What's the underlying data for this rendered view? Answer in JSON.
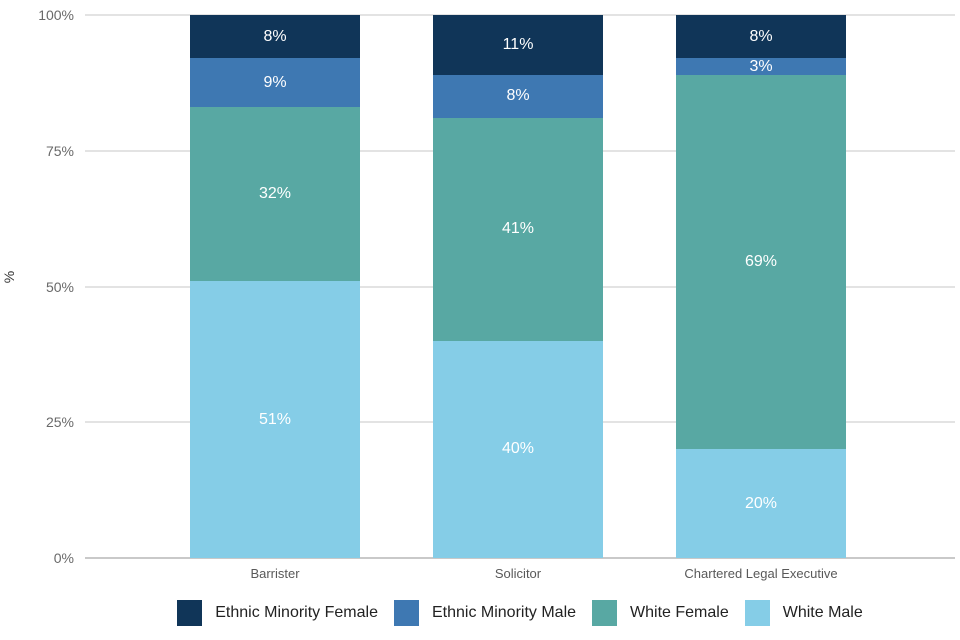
{
  "chart_data": {
    "type": "bar",
    "variant": "stacked-percent-column",
    "title": "",
    "categories": [
      "Barrister",
      "Solicitor",
      "Chartered Legal Executive"
    ],
    "series": [
      {
        "name": "Ethnic Minority Female",
        "color": "#103558",
        "values": [
          8,
          11,
          8
        ]
      },
      {
        "name": "Ethnic Minority Male",
        "color": "#3e78b2",
        "values": [
          9,
          8,
          3
        ]
      },
      {
        "name": "White Female",
        "color": "#58a8a3",
        "values": [
          32,
          41,
          69
        ]
      },
      {
        "name": "White Male",
        "color": "#85cde7",
        "values": [
          51,
          40,
          20
        ]
      }
    ],
    "xlabel": "",
    "ylabel": "%",
    "ylim": [
      0,
      100
    ],
    "yticks": [
      {
        "value": 0,
        "label": "0%"
      },
      {
        "value": 25,
        "label": "25%"
      },
      {
        "value": 50,
        "label": "50%"
      },
      {
        "value": 75,
        "label": "75%"
      },
      {
        "value": 100,
        "label": "100%"
      }
    ],
    "grid": true,
    "legend_position": "bottom",
    "data_label_suffix": "%"
  },
  "style": {
    "background": "#ffffff",
    "grid_color": "#e3e3e3",
    "axis_line_color": "#c9c9c9",
    "y_tick_label_color": "#696969",
    "category_label_color": "#595959",
    "data_label_color": "#ffffff",
    "legend_text_color": "#222222"
  }
}
